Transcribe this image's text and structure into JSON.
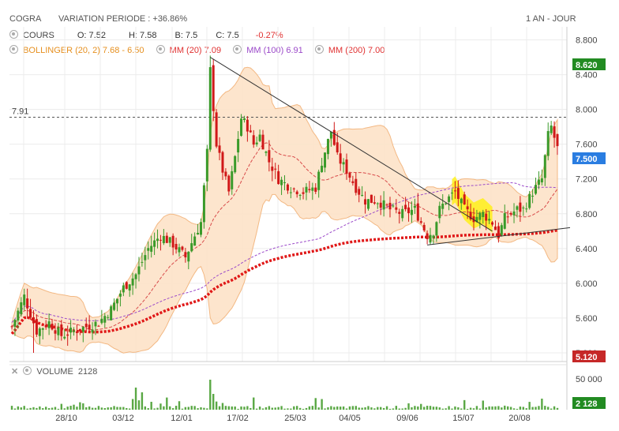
{
  "header": {
    "ticker": "COGRA",
    "variation": "VARIATION PERIODE : +36.86%",
    "period": "1 AN - JOUR"
  },
  "legend": {
    "cours_label": "COURS",
    "open": "O: 7.52",
    "high": "H: 7.58",
    "low": "B: 7.5",
    "close": "C: 7.5",
    "change": "-0.27%",
    "bollinger": "BOLLINGER (20, 2) 7.68 - 6.50",
    "mm20": "MM (20) 7.09",
    "mm100": "MM (100) 6.91",
    "mm200": "MM (200) 7.00"
  },
  "volume_legend": {
    "label": "VOLUME",
    "value": "2128"
  },
  "markers": {
    "hline_label": "7.91",
    "last_price": "7.500",
    "high_tag": "8.620",
    "low_tag": "5.120",
    "last_volume": "2 128"
  },
  "colors": {
    "up": "#3a9a2a",
    "down": "#d01818",
    "band_fill": "#fde3c8",
    "band_line": "#f2b176",
    "mm20": "#d84a4a",
    "mm100": "#9b49c9",
    "mm200": "#e01818",
    "trend": "#333333",
    "highlight": "#fff000",
    "tag_green": "#228b22",
    "tag_blue": "#2a7de1",
    "tag_red": "#c62828",
    "cours_change": "#e03030",
    "bollinger_text": "#e69020",
    "mm100_text": "#9b49c9",
    "mm_text": "#e03030"
  },
  "chart_data": {
    "type": "candlestick",
    "y_axis": {
      "ticks": [
        "8.800",
        "8.400",
        "8.000",
        "7.600",
        "7.200",
        "6.800",
        "6.400",
        "6.000",
        "5.600",
        "5.200"
      ],
      "ylim": [
        5.1,
        8.95
      ]
    },
    "x_axis": {
      "ticks": [
        "28/10",
        "03/12",
        "12/01",
        "17/02",
        "25/03",
        "04/05",
        "09/06",
        "15/07",
        "20/08"
      ]
    },
    "volume_axis": {
      "ticks": [
        "50 000"
      ]
    },
    "keyframes": [
      [
        0,
        5.5
      ],
      [
        4,
        5.85
      ],
      [
        8,
        5.45
      ],
      [
        12,
        5.55
      ],
      [
        16,
        5.4
      ],
      [
        20,
        5.45
      ],
      [
        24,
        5.5
      ],
      [
        28,
        5.55
      ],
      [
        32,
        5.7
      ],
      [
        36,
        5.95
      ],
      [
        40,
        6.1
      ],
      [
        44,
        6.4
      ],
      [
        48,
        6.55
      ],
      [
        52,
        6.45
      ],
      [
        56,
        6.3
      ],
      [
        59,
        6.55
      ],
      [
        61,
        6.7
      ],
      [
        63,
        7.5
      ],
      [
        64,
        8.45
      ],
      [
        66,
        7.6
      ],
      [
        68,
        7.3
      ],
      [
        70,
        7.05
      ],
      [
        72,
        7.45
      ],
      [
        74,
        7.9
      ],
      [
        76,
        7.8
      ],
      [
        78,
        7.6
      ],
      [
        80,
        7.7
      ],
      [
        83,
        7.4
      ],
      [
        86,
        7.2
      ],
      [
        90,
        7.1
      ],
      [
        94,
        7.05
      ],
      [
        98,
        7.1
      ],
      [
        100,
        7.4
      ],
      [
        103,
        7.75
      ],
      [
        105,
        7.45
      ],
      [
        108,
        7.3
      ],
      [
        111,
        7.1
      ],
      [
        114,
        6.95
      ],
      [
        118,
        6.95
      ],
      [
        122,
        6.85
      ],
      [
        126,
        6.8
      ],
      [
        130,
        6.85
      ],
      [
        134,
        6.55
      ],
      [
        136,
        6.6
      ],
      [
        138,
        6.85
      ],
      [
        140,
        6.95
      ],
      [
        143,
        7.05
      ],
      [
        146,
        6.85
      ],
      [
        149,
        6.75
      ],
      [
        152,
        6.8
      ],
      [
        155,
        6.7
      ],
      [
        157,
        6.55
      ],
      [
        159,
        6.75
      ],
      [
        163,
        6.85
      ],
      [
        165,
        6.85
      ],
      [
        168,
        7.05
      ],
      [
        171,
        7.2
      ],
      [
        173,
        7.7
      ],
      [
        174,
        7.8
      ],
      [
        176,
        7.55
      ]
    ],
    "horizontal_line": 7.91,
    "trendlines": [
      {
        "from": [
          64,
          8.6
        ],
        "to": [
          155,
          6.6
        ]
      },
      {
        "from": [
          134,
          6.44
        ],
        "to": [
          176,
          6.64
        ]
      }
    ],
    "moving_averages": [
      "MM (20)",
      "MM (100)",
      "MM (200)"
    ],
    "bollinger_bands": "BOLLINGER (20, 2)"
  }
}
